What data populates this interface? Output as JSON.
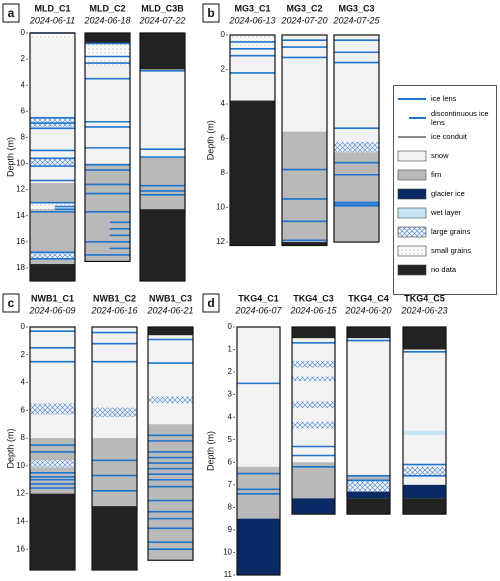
{
  "legend": [
    {
      "label": "ice lens",
      "style": "line",
      "color": "#1f74d0"
    },
    {
      "label": "discontinuous ice lens",
      "style": "short-line",
      "color": "#1f74d0"
    },
    {
      "label": "ice conduit",
      "style": "line",
      "color": "#8a8a8a"
    },
    {
      "label": "snow",
      "style": "fill",
      "color": "#f2f2f2"
    },
    {
      "label": "firn",
      "style": "fill",
      "color": "#b9b9b9"
    },
    {
      "label": "glacier ice",
      "style": "fill",
      "color": "#0a2a66"
    },
    {
      "label": "wet layer",
      "style": "fill",
      "color": "#c6e4f4"
    },
    {
      "label": "large grains",
      "style": "hatch",
      "color": "#4a7fc0"
    },
    {
      "label": "small grains",
      "style": "dots",
      "color": "#888888"
    },
    {
      "label": "no data",
      "style": "fill",
      "color": "#222222"
    }
  ],
  "chart_data": [
    {
      "type": "stratigraphy",
      "panel_label": "a",
      "y_label": "Depth (m)",
      "ylim": [
        0,
        19
      ],
      "yticks": [
        0,
        2,
        4,
        6,
        8,
        10,
        12,
        14,
        16,
        18
      ],
      "cores": [
        {
          "name": "MLD_C1",
          "date": "2024-06-11",
          "layers": [
            {
              "facies": "small grains",
              "top": 0,
              "bottom": 0.6
            },
            {
              "facies": "snow",
              "top": 0.6,
              "bottom": 6.5
            },
            {
              "facies": "large grains",
              "top": 6.5,
              "bottom": 7.2
            },
            {
              "facies": "snow",
              "top": 7.2,
              "bottom": 9.6
            },
            {
              "facies": "large grains",
              "top": 9.6,
              "bottom": 10.2
            },
            {
              "facies": "snow",
              "top": 10.2,
              "bottom": 11.5
            },
            {
              "facies": "firn",
              "top": 11.5,
              "bottom": 13
            },
            {
              "facies": "small grains",
              "top": 13,
              "bottom": 13.5
            },
            {
              "facies": "firn",
              "top": 13.5,
              "bottom": 16.8
            },
            {
              "facies": "large grains",
              "top": 16.8,
              "bottom": 17.3
            },
            {
              "facies": "firn",
              "top": 17.3,
              "bottom": 17.7
            },
            {
              "facies": "no data",
              "top": 17.7,
              "bottom": 19
            }
          ],
          "ice_lenses": [
            0,
            6.5,
            6.9,
            7.3,
            9,
            9.6,
            10.2,
            11.3,
            13,
            13.7,
            16.8,
            17.3
          ],
          "discontinuous_lenses": [
            13.3,
            13.5
          ]
        },
        {
          "name": "MLD_C2",
          "date": "2024-06-18",
          "layers": [
            {
              "facies": "no data",
              "top": 0,
              "bottom": 0.8
            },
            {
              "facies": "small grains",
              "top": 0.8,
              "bottom": 2.5
            },
            {
              "facies": "snow",
              "top": 2.5,
              "bottom": 10
            },
            {
              "facies": "firn",
              "top": 10,
              "bottom": 17.5
            }
          ],
          "ice_lenses": [
            0.8,
            1.8,
            2.3,
            3.5,
            6.8,
            7.2,
            8.8,
            10.1,
            10.5,
            11.6,
            12.3,
            13.7,
            16,
            17
          ],
          "discontinuous_lenses": [
            14.5,
            15,
            15.5,
            16.5
          ]
        },
        {
          "name": "MLD_C3B",
          "date": "2024-07-22",
          "layers": [
            {
              "facies": "no data",
              "top": 0,
              "bottom": 2.8
            },
            {
              "facies": "snow",
              "top": 2.8,
              "bottom": 9.5
            },
            {
              "facies": "firn",
              "top": 9.5,
              "bottom": 13.5
            },
            {
              "facies": "no data",
              "top": 13.5,
              "bottom": 19
            }
          ],
          "ice_lenses": [
            2.9,
            8.9,
            9.5,
            11.7,
            12.1,
            12.4
          ],
          "discontinuous_lenses": []
        }
      ]
    },
    {
      "type": "stratigraphy",
      "panel_label": "b",
      "y_label": "Depth (m)",
      "ylim": [
        0,
        12.2
      ],
      "yticks": [
        0,
        2,
        4,
        6,
        8,
        10,
        12
      ],
      "cores": [
        {
          "name": "MG3_C1",
          "date": "2024-06-13",
          "layers": [
            {
              "facies": "small grains",
              "top": 0,
              "bottom": 0.6
            },
            {
              "facies": "snow",
              "top": 0.6,
              "bottom": 3.8
            },
            {
              "facies": "no data",
              "top": 3.8,
              "bottom": 12.2
            }
          ],
          "ice_lenses": [
            0.4,
            0.8,
            1.2,
            2.2
          ],
          "discontinuous_lenses": []
        },
        {
          "name": "MG3_C2",
          "date": "2024-07-20",
          "layers": [
            {
              "facies": "snow",
              "top": 0,
              "bottom": 5.6
            },
            {
              "facies": "firn",
              "top": 5.6,
              "bottom": 12
            },
            {
              "facies": "no data",
              "top": 12,
              "bottom": 12.2
            }
          ],
          "ice_lenses": [
            0.3,
            0.7,
            1.3,
            7.8,
            9.5,
            10.8,
            11.9
          ],
          "discontinuous_lenses": []
        },
        {
          "name": "MG3_C3",
          "date": "2024-07-25",
          "layers": [
            {
              "facies": "snow",
              "top": 0,
              "bottom": 6.2
            },
            {
              "facies": "large grains",
              "top": 6.2,
              "bottom": 6.8
            },
            {
              "facies": "firn",
              "top": 6.8,
              "bottom": 12
            }
          ],
          "ice_lenses": [
            0.3,
            1,
            1.6,
            5.4,
            7.4,
            8.1,
            9.7,
            9.8,
            9.9
          ],
          "discontinuous_lenses": []
        }
      ]
    },
    {
      "type": "stratigraphy",
      "panel_label": "c",
      "y_label": "Depth (m)",
      "ylim": [
        0,
        17.5
      ],
      "yticks": [
        0,
        2,
        4,
        6,
        8,
        10,
        12,
        14,
        16
      ],
      "cores": [
        {
          "name": "NWB1_C1",
          "date": "2024-06-09",
          "layers": [
            {
              "facies": "snow",
              "top": 0,
              "bottom": 5.5
            },
            {
              "facies": "large grains",
              "top": 5.5,
              "bottom": 6.3
            },
            {
              "facies": "snow",
              "top": 6.3,
              "bottom": 8
            },
            {
              "facies": "firn",
              "top": 8,
              "bottom": 9.6
            },
            {
              "facies": "large grains",
              "top": 9.6,
              "bottom": 10.1
            },
            {
              "facies": "firn",
              "top": 10.1,
              "bottom": 12
            },
            {
              "facies": "no data",
              "top": 12,
              "bottom": 17.5
            }
          ],
          "ice_lenses": [
            0.3,
            1.5,
            2.5,
            8.5,
            9,
            10.5,
            10.8,
            11,
            11.3,
            11.6
          ],
          "discontinuous_lenses": []
        },
        {
          "name": "NWB1_C2",
          "date": "2024-06-16",
          "layers": [
            {
              "facies": "snow",
              "top": 0,
              "bottom": 5.8
            },
            {
              "facies": "large grains",
              "top": 5.8,
              "bottom": 6.5
            },
            {
              "facies": "snow",
              "top": 6.5,
              "bottom": 8
            },
            {
              "facies": "firn",
              "top": 8,
              "bottom": 12.9
            },
            {
              "facies": "no data",
              "top": 12.9,
              "bottom": 17.5
            }
          ],
          "ice_lenses": [
            0.4,
            1.2,
            2.5,
            9.6,
            10.7,
            11.8
          ],
          "discontinuous_lenses": []
        },
        {
          "name": "NWB1_C3",
          "date": "2024-06-21",
          "layers": [
            {
              "facies": "no data",
              "top": 0,
              "bottom": 0.6
            },
            {
              "facies": "snow",
              "top": 0.6,
              "bottom": 5
            },
            {
              "facies": "large grains",
              "top": 5,
              "bottom": 5.5
            },
            {
              "facies": "snow",
              "top": 5.5,
              "bottom": 7
            },
            {
              "facies": "firn",
              "top": 7,
              "bottom": 16.8
            }
          ],
          "ice_lenses": [
            0.9,
            2.6,
            7.8,
            8.2,
            9,
            9.4,
            9.8,
            10.2,
            10.6,
            11,
            11.5,
            12.5,
            13.3,
            13.8,
            14.5,
            15.5,
            16
          ],
          "discontinuous_lenses": []
        }
      ]
    },
    {
      "type": "stratigraphy",
      "panel_label": "d",
      "y_label": "Depth (m)",
      "ylim": [
        0,
        11
      ],
      "yticks": [
        0,
        1,
        2,
        3,
        4,
        5,
        6,
        7,
        8,
        9,
        10,
        11
      ],
      "cores": [
        {
          "name": "TKG4_C1",
          "date": "2024-06-07",
          "layers": [
            {
              "facies": "snow",
              "top": 0,
              "bottom": 6.2
            },
            {
              "facies": "firn",
              "top": 6.2,
              "bottom": 8.5
            },
            {
              "facies": "glacier ice",
              "top": 8.5,
              "bottom": 11
            }
          ],
          "ice_lenses": [
            2.5,
            6.5,
            7.2,
            7.4
          ],
          "discontinuous_lenses": []
        },
        {
          "name": "TKG4_C3",
          "date": "2024-06-15",
          "layers": [
            {
              "facies": "no data",
              "top": 0,
              "bottom": 0.5
            },
            {
              "facies": "snow",
              "top": 0.5,
              "bottom": 1.5
            },
            {
              "facies": "large grains",
              "top": 1.5,
              "bottom": 1.8
            },
            {
              "facies": "snow",
              "top": 1.8,
              "bottom": 2.2
            },
            {
              "facies": "large grains",
              "top": 2.2,
              "bottom": 2.4
            },
            {
              "facies": "snow",
              "top": 2.4,
              "bottom": 3.3
            },
            {
              "facies": "large grains",
              "top": 3.3,
              "bottom": 3.6
            },
            {
              "facies": "snow",
              "top": 3.6,
              "bottom": 4.2
            },
            {
              "facies": "large grains",
              "top": 4.2,
              "bottom": 4.5
            },
            {
              "facies": "snow",
              "top": 4.5,
              "bottom": 6
            },
            {
              "facies": "firn",
              "top": 6,
              "bottom": 7.6
            },
            {
              "facies": "glacier ice",
              "top": 7.6,
              "bottom": 8.3
            }
          ],
          "ice_lenses": [
            0.7,
            5.3,
            5.7,
            6.2
          ],
          "discontinuous_lenses": []
        },
        {
          "name": "TKG4_C4",
          "date": "2024-06-20",
          "layers": [
            {
              "facies": "no data",
              "top": 0,
              "bottom": 0.5
            },
            {
              "facies": "snow",
              "top": 0.5,
              "bottom": 6.6
            },
            {
              "facies": "firn",
              "top": 6.6,
              "bottom": 6.8
            },
            {
              "facies": "large grains",
              "top": 6.8,
              "bottom": 7.3
            },
            {
              "facies": "glacier ice",
              "top": 7.3,
              "bottom": 7.6
            },
            {
              "facies": "no data",
              "top": 7.6,
              "bottom": 8.3
            }
          ],
          "ice_lenses": [
            0.6,
            6.6,
            6.8
          ],
          "discontinuous_lenses": []
        },
        {
          "name": "TKG4_C5",
          "date": "2024-06-23",
          "layers": [
            {
              "facies": "no data",
              "top": 0,
              "bottom": 1
            },
            {
              "facies": "snow",
              "top": 1,
              "bottom": 4.6
            },
            {
              "facies": "wet layer",
              "top": 4.6,
              "bottom": 4.8
            },
            {
              "facies": "snow",
              "top": 4.8,
              "bottom": 6.2
            },
            {
              "facies": "large grains",
              "top": 6.2,
              "bottom": 6.6
            },
            {
              "facies": "snow",
              "top": 6.6,
              "bottom": 7
            },
            {
              "facies": "glacier ice",
              "top": 7,
              "bottom": 7.6
            },
            {
              "facies": "no data",
              "top": 7.6,
              "bottom": 8.3
            }
          ],
          "ice_lenses": [
            1.1,
            6.1,
            6.6
          ],
          "discontinuous_lenses": []
        }
      ]
    }
  ]
}
